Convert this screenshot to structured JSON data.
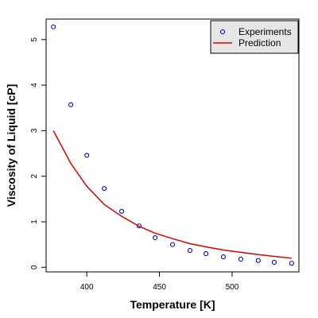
{
  "chart_data": {
    "type": "scatter",
    "title": "",
    "xlabel": "Temperature [K]",
    "ylabel": "Viscosity of Liquid [cP]",
    "xlim": [
      372,
      546
    ],
    "ylim": [
      -0.1,
      5.45
    ],
    "xticks": [
      400,
      450,
      500
    ],
    "xtick_labels": [
      "400",
      "450",
      "500"
    ],
    "yticks": [
      0,
      1,
      2,
      3,
      4,
      5
    ],
    "ytick_labels": [
      "0",
      "1",
      "2",
      "3",
      "4",
      "5"
    ],
    "grid": false,
    "legend_position": "top-right",
    "series": [
      {
        "name": "Experiments",
        "kind": "points",
        "color": "#0000cc",
        "x": [
          377,
          389,
          400,
          412,
          424,
          436,
          447,
          459,
          471,
          482,
          494,
          506,
          518,
          529,
          541
        ],
        "y": [
          5.28,
          3.57,
          2.46,
          1.73,
          1.23,
          0.91,
          0.65,
          0.5,
          0.37,
          0.3,
          0.23,
          0.18,
          0.15,
          0.11,
          0.09
        ]
      },
      {
        "name": "Prediction",
        "kind": "line",
        "color": "#dd0000",
        "x": [
          377,
          389,
          400,
          412,
          424,
          436,
          447,
          459,
          471,
          482,
          494,
          506,
          518,
          529,
          541
        ],
        "y": [
          3.0,
          2.28,
          1.78,
          1.38,
          1.12,
          0.9,
          0.75,
          0.63,
          0.52,
          0.45,
          0.38,
          0.33,
          0.28,
          0.24,
          0.2
        ]
      }
    ]
  }
}
